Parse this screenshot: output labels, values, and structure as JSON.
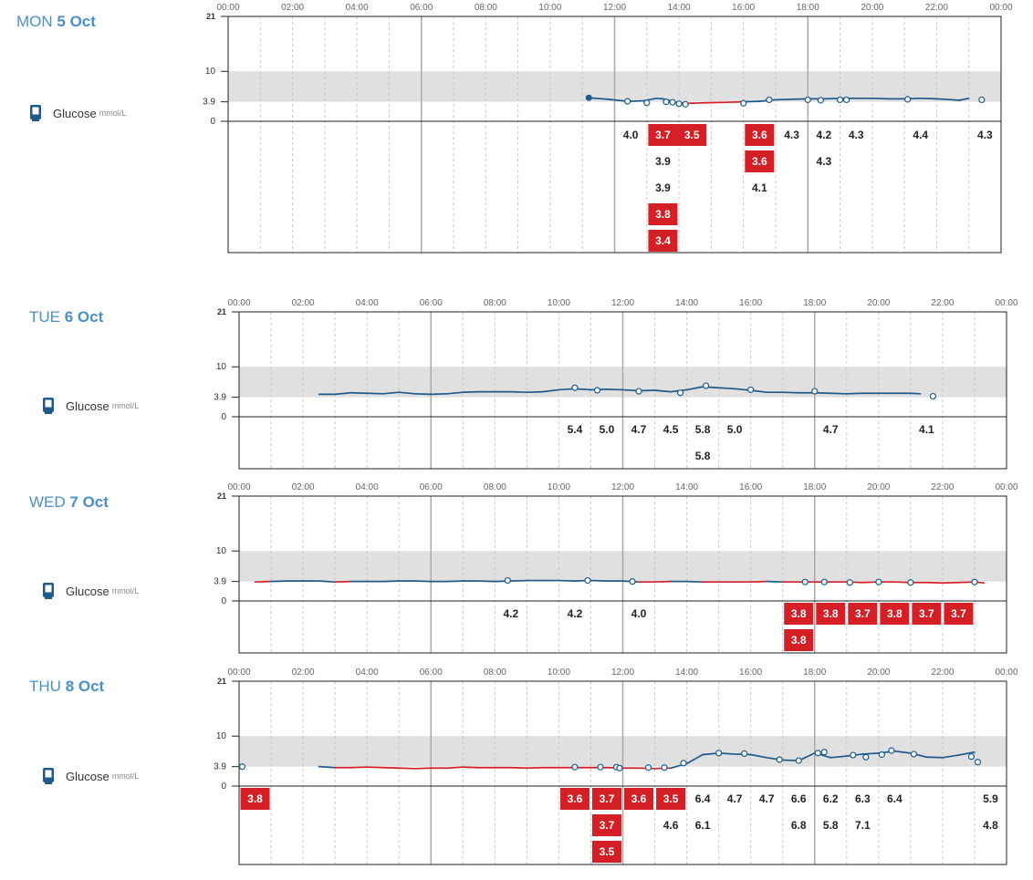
{
  "units": "mmol/L",
  "series_label": "Glucose",
  "colors": {
    "in_range": "#1e5a8c",
    "low": "#d51f26",
    "band": "#e0e0e0",
    "day_label": "#4a8fc7"
  },
  "y_ticks": [
    "21",
    "10",
    "3.9",
    "0"
  ],
  "x_ticks": [
    "00:00",
    "02:00",
    "04:00",
    "06:00",
    "08:00",
    "10:00",
    "12:00",
    "14:00",
    "16:00",
    "18:00",
    "20:00",
    "22:00",
    "00:00"
  ],
  "days": [
    {
      "dow": "MON",
      "date": "5 Oct"
    },
    {
      "dow": "TUE",
      "date": "6 Oct"
    },
    {
      "dow": "WED",
      "date": "7 Oct"
    },
    {
      "dow": "THU",
      "date": "8 Oct"
    }
  ],
  "chart_data": [
    {
      "type": "line",
      "day": "MON 5 Oct",
      "ylim": [
        0,
        21
      ],
      "target_range": [
        3.9,
        10
      ],
      "start_dot": [
        11.2,
        4.7
      ],
      "x": [
        11.2,
        11.8,
        12.4,
        12.9,
        13.3,
        13.5,
        13.9,
        14.3,
        14.8,
        15.5,
        16.0,
        16.5,
        17.0,
        17.5,
        18.0,
        18.5,
        19.0,
        19.5,
        20.0,
        20.5,
        21.0,
        21.5,
        22.0,
        22.5,
        22.7,
        23.0
      ],
      "y": [
        4.7,
        4.4,
        4.0,
        4.1,
        4.6,
        4.5,
        3.8,
        3.6,
        3.7,
        3.8,
        3.9,
        4.0,
        4.3,
        4.4,
        4.5,
        4.5,
        4.6,
        4.6,
        4.6,
        4.5,
        4.5,
        4.6,
        4.5,
        4.3,
        4.2,
        4.6
      ],
      "points": [
        [
          12.4,
          4.0
        ],
        [
          13.0,
          3.7
        ],
        [
          13.6,
          3.9
        ],
        [
          13.8,
          3.8
        ],
        [
          14.0,
          3.5
        ],
        [
          14.2,
          3.4
        ],
        [
          16.0,
          3.6
        ],
        [
          16.8,
          4.3
        ],
        [
          18.0,
          4.3
        ],
        [
          18.4,
          4.2
        ],
        [
          19.0,
          4.3
        ],
        [
          19.2,
          4.3
        ],
        [
          21.1,
          4.4
        ],
        [
          23.4,
          4.3
        ]
      ],
      "readings": [
        {
          "t": 12.5,
          "rows": [
            "4.0"
          ],
          "low": []
        },
        {
          "t": 13.5,
          "rows": [
            "3.7",
            "3.9",
            "3.9",
            "3.8",
            "3.4"
          ],
          "low": [
            0,
            3,
            4
          ]
        },
        {
          "t": 14.4,
          "rows": [
            "3.5"
          ],
          "low": [
            0
          ]
        },
        {
          "t": 16.5,
          "rows": [
            "3.6",
            "3.6",
            "4.1"
          ],
          "low": [
            0,
            1
          ]
        },
        {
          "t": 17.5,
          "rows": [
            "4.3"
          ],
          "low": []
        },
        {
          "t": 18.5,
          "rows": [
            "4.2",
            "4.3"
          ],
          "low": []
        },
        {
          "t": 19.5,
          "rows": [
            "4.3"
          ],
          "low": []
        },
        {
          "t": 21.5,
          "rows": [
            "4.4"
          ],
          "low": []
        },
        {
          "t": 23.5,
          "rows": [
            "4.3"
          ],
          "low": []
        }
      ]
    },
    {
      "type": "line",
      "day": "TUE 6 Oct",
      "ylim": [
        0,
        21
      ],
      "target_range": [
        3.9,
        10
      ],
      "x": [
        2.5,
        3.0,
        3.5,
        4.0,
        4.5,
        5.0,
        5.5,
        6.0,
        6.5,
        7.0,
        7.5,
        8.0,
        8.5,
        9.0,
        9.5,
        10.0,
        10.5,
        11.0,
        11.5,
        12.0,
        12.5,
        13.0,
        13.5,
        14.0,
        14.5,
        15.0,
        15.5,
        16.0,
        16.5,
        17.0,
        17.5,
        18.0,
        18.5,
        19.0,
        19.5,
        20.0,
        20.5,
        21.0,
        21.3
      ],
      "y": [
        4.5,
        4.5,
        4.8,
        4.7,
        4.6,
        4.9,
        4.6,
        4.5,
        4.6,
        4.9,
        5.0,
        5.0,
        5.0,
        4.9,
        5.0,
        5.4,
        5.6,
        5.4,
        5.5,
        5.4,
        5.2,
        5.3,
        5.0,
        5.4,
        6.0,
        5.8,
        5.6,
        5.3,
        4.9,
        4.9,
        4.8,
        4.8,
        4.7,
        4.6,
        4.7,
        4.7,
        4.7,
        4.7,
        4.6
      ],
      "points": [
        [
          10.5,
          5.8
        ],
        [
          11.2,
          5.3
        ],
        [
          12.5,
          5.1
        ],
        [
          13.8,
          4.8
        ],
        [
          14.6,
          6.2
        ],
        [
          16.0,
          5.4
        ],
        [
          18.0,
          5.1
        ],
        [
          21.7,
          4.1
        ]
      ],
      "readings": [
        {
          "t": 10.5,
          "rows": [
            "5.4"
          ],
          "low": []
        },
        {
          "t": 11.5,
          "rows": [
            "5.0"
          ],
          "low": []
        },
        {
          "t": 12.5,
          "rows": [
            "4.7"
          ],
          "low": []
        },
        {
          "t": 13.5,
          "rows": [
            "4.5"
          ],
          "low": []
        },
        {
          "t": 14.5,
          "rows": [
            "5.8",
            "5.8"
          ],
          "low": []
        },
        {
          "t": 15.5,
          "rows": [
            "5.0"
          ],
          "low": []
        },
        {
          "t": 18.5,
          "rows": [
            "4.7"
          ],
          "low": []
        },
        {
          "t": 21.5,
          "rows": [
            "4.1"
          ],
          "low": []
        }
      ]
    },
    {
      "type": "line",
      "day": "WED 7 Oct",
      "ylim": [
        0,
        21
      ],
      "target_range": [
        3.9,
        10
      ],
      "x": [
        0.5,
        1.0,
        1.5,
        2.0,
        2.5,
        3.0,
        3.5,
        4.0,
        4.5,
        5.0,
        5.5,
        6.0,
        6.5,
        7.0,
        7.5,
        8.0,
        8.5,
        9.0,
        9.5,
        10.0,
        10.5,
        11.0,
        11.5,
        12.0,
        12.5,
        13.0,
        13.5,
        14.0,
        14.5,
        15.0,
        15.5,
        16.0,
        16.5,
        17.0,
        17.5,
        18.0,
        18.5,
        19.0,
        19.5,
        20.0,
        20.5,
        21.0,
        21.5,
        22.0,
        22.5,
        23.0,
        23.3
      ],
      "y": [
        3.8,
        3.9,
        4.0,
        4.0,
        4.0,
        3.8,
        3.9,
        3.9,
        3.9,
        4.0,
        4.0,
        3.9,
        3.9,
        4.0,
        4.0,
        3.9,
        4.0,
        4.1,
        4.1,
        4.1,
        4.0,
        4.1,
        4.0,
        4.0,
        3.8,
        3.8,
        3.9,
        3.9,
        3.8,
        3.8,
        3.8,
        3.8,
        3.9,
        3.8,
        3.8,
        3.8,
        3.8,
        3.8,
        3.7,
        3.8,
        3.8,
        3.7,
        3.7,
        3.6,
        3.7,
        3.8,
        3.6
      ],
      "points": [
        [
          8.4,
          4.1
        ],
        [
          10.9,
          4.1
        ],
        [
          12.3,
          3.9
        ],
        [
          17.7,
          3.8
        ],
        [
          18.3,
          3.8
        ],
        [
          19.1,
          3.7
        ],
        [
          20.0,
          3.8
        ],
        [
          21.0,
          3.7
        ],
        [
          23.0,
          3.8
        ]
      ],
      "readings": [
        {
          "t": 8.5,
          "rows": [
            "4.2"
          ],
          "low": []
        },
        {
          "t": 10.5,
          "rows": [
            "4.2"
          ],
          "low": []
        },
        {
          "t": 12.5,
          "rows": [
            "4.0"
          ],
          "low": []
        },
        {
          "t": 17.5,
          "rows": [
            "3.8",
            "3.8"
          ],
          "low": [
            0,
            1
          ]
        },
        {
          "t": 18.5,
          "rows": [
            "3.8"
          ],
          "low": [
            0
          ]
        },
        {
          "t": 19.5,
          "rows": [
            "3.7"
          ],
          "low": [
            0
          ]
        },
        {
          "t": 20.5,
          "rows": [
            "3.8"
          ],
          "low": [
            0
          ]
        },
        {
          "t": 21.5,
          "rows": [
            "3.7"
          ],
          "low": [
            0
          ]
        },
        {
          "t": 22.5,
          "rows": [
            "3.7"
          ],
          "low": [
            0
          ]
        }
      ]
    },
    {
      "type": "line",
      "day": "THU 8 Oct",
      "ylim": [
        0,
        21
      ],
      "target_range": [
        3.9,
        10
      ],
      "x": [
        2.5,
        3.0,
        3.5,
        4.0,
        4.5,
        5.0,
        5.5,
        6.0,
        6.5,
        7.0,
        7.5,
        8.0,
        8.5,
        9.0,
        9.5,
        10.0,
        10.5,
        11.0,
        11.5,
        12.0,
        12.5,
        13.0,
        13.5,
        14.0,
        14.5,
        15.0,
        15.5,
        16.0,
        16.5,
        17.0,
        17.5,
        18.0,
        18.5,
        19.0,
        19.5,
        20.0,
        20.5,
        21.0,
        21.5,
        22.0,
        22.5,
        23.0
      ],
      "y": [
        3.9,
        3.7,
        3.7,
        3.8,
        3.7,
        3.6,
        3.5,
        3.6,
        3.6,
        3.8,
        3.7,
        3.7,
        3.7,
        3.6,
        3.7,
        3.7,
        3.7,
        3.7,
        3.7,
        3.6,
        3.6,
        3.5,
        3.6,
        4.5,
        6.3,
        6.6,
        6.4,
        6.3,
        5.7,
        5.2,
        5.1,
        6.6,
        5.7,
        6.0,
        6.4,
        6.6,
        7.0,
        6.6,
        5.8,
        5.7,
        6.2,
        6.8
      ],
      "points": [
        [
          0.1,
          3.9
        ],
        [
          10.5,
          3.8
        ],
        [
          11.3,
          3.8
        ],
        [
          11.8,
          3.8
        ],
        [
          11.9,
          3.6
        ],
        [
          12.8,
          3.7
        ],
        [
          13.3,
          3.7
        ],
        [
          13.9,
          4.6
        ],
        [
          15.0,
          6.6
        ],
        [
          15.8,
          6.5
        ],
        [
          16.9,
          5.3
        ],
        [
          17.5,
          5.1
        ],
        [
          18.1,
          6.6
        ],
        [
          18.3,
          6.8
        ],
        [
          19.2,
          6.2
        ],
        [
          19.6,
          5.8
        ],
        [
          20.1,
          6.3
        ],
        [
          20.4,
          7.1
        ],
        [
          21.1,
          6.4
        ],
        [
          22.9,
          5.9
        ],
        [
          23.1,
          4.8
        ]
      ],
      "readings": [
        {
          "t": 0.5,
          "rows": [
            "3.8"
          ],
          "low": [
            0
          ]
        },
        {
          "t": 10.5,
          "rows": [
            "3.6"
          ],
          "low": [
            0
          ]
        },
        {
          "t": 11.5,
          "rows": [
            "3.7",
            "3.7",
            "3.5"
          ],
          "low": [
            0,
            1,
            2
          ]
        },
        {
          "t": 12.5,
          "rows": [
            "3.6"
          ],
          "low": [
            0
          ]
        },
        {
          "t": 13.5,
          "rows": [
            "3.5",
            "4.6"
          ],
          "low": [
            0
          ]
        },
        {
          "t": 14.5,
          "rows": [
            "6.4",
            "6.1"
          ],
          "low": []
        },
        {
          "t": 15.5,
          "rows": [
            "4.7"
          ],
          "low": []
        },
        {
          "t": 16.5,
          "rows": [
            "4.7"
          ],
          "low": []
        },
        {
          "t": 17.5,
          "rows": [
            "6.6",
            "6.8"
          ],
          "low": []
        },
        {
          "t": 18.5,
          "rows": [
            "6.2",
            "5.8"
          ],
          "low": []
        },
        {
          "t": 19.5,
          "rows": [
            "6.3",
            "7.1"
          ],
          "low": []
        },
        {
          "t": 20.5,
          "rows": [
            "6.4"
          ],
          "low": []
        },
        {
          "t": 23.5,
          "rows": [
            "5.9",
            "4.8"
          ],
          "low": []
        }
      ]
    }
  ]
}
